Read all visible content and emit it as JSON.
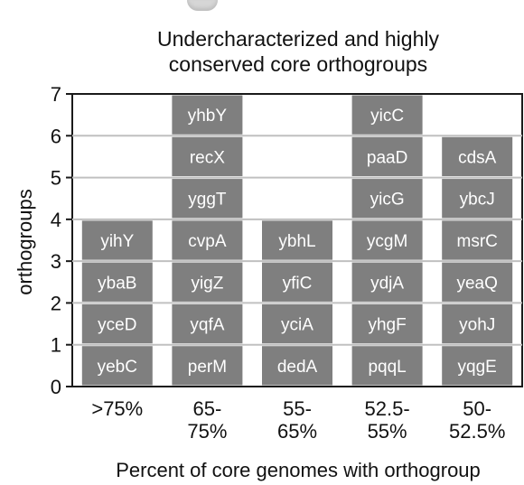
{
  "chart_data": {
    "type": "bar",
    "stacked": true,
    "title_lines": [
      "Undercharacterized and highly",
      "conserved core orthogroups"
    ],
    "xlabel": "Percent of core genomes with orthogroup",
    "ylabel": "orthogroups",
    "ylim": [
      0,
      7
    ],
    "yticks": [
      0,
      1,
      2,
      3,
      4,
      5,
      6,
      7
    ],
    "grid": "horizontal",
    "bar_color": "#7f7f7f",
    "gene_text_color": "#ffffff",
    "grid_color": "#c0c0c0",
    "categories": [
      {
        "label_lines": [
          ">75%"
        ],
        "genes": [
          "yebC",
          "yceD",
          "ybaB",
          "yihY"
        ]
      },
      {
        "label_lines": [
          "65-",
          "75%"
        ],
        "genes": [
          "perM",
          "yqfA",
          "yigZ",
          "cvpA",
          "yggT",
          "recX",
          "yhbY"
        ]
      },
      {
        "label_lines": [
          "55-",
          "65%"
        ],
        "genes": [
          "dedA",
          "yciA",
          "yfiC",
          "ybhL"
        ]
      },
      {
        "label_lines": [
          "52.5-",
          "55%"
        ],
        "genes": [
          "pqqL",
          "yhgF",
          "ydjA",
          "ycgM",
          "yicG",
          "paaD",
          "yicC"
        ]
      },
      {
        "label_lines": [
          "50-",
          "52.5%"
        ],
        "genes": [
          "yqgE",
          "yohJ",
          "yeaQ",
          "msrC",
          "ybcJ",
          "cdsA"
        ]
      }
    ],
    "values": [
      4,
      7,
      4,
      7,
      6
    ]
  }
}
